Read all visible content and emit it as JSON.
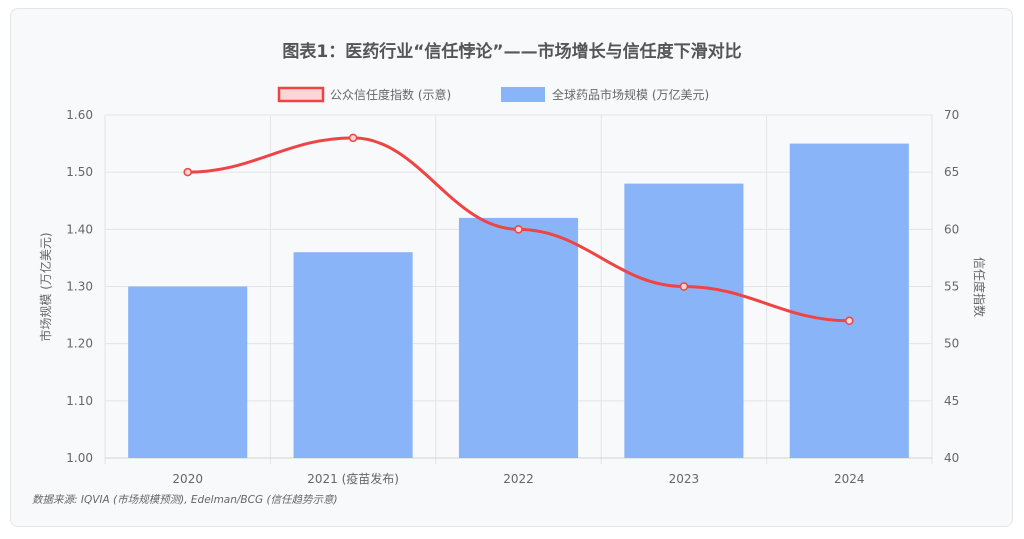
{
  "chart_data": {
    "type": "bar+line",
    "title": "图表1：医药行业“信任悖论”——市场增长与信任度下滑对比",
    "categories": [
      "2020",
      "2021 (疫苗发布)",
      "2022",
      "2023",
      "2024"
    ],
    "series": [
      {
        "name": "公众信任度指数 (示意)",
        "type": "line",
        "axis": "right",
        "color": "#ef4444",
        "values": [
          65,
          68,
          60,
          55,
          52
        ]
      },
      {
        "name": "全球药品市场规模 (万亿美元)",
        "type": "bar",
        "axis": "left",
        "color": "#8ab4f8",
        "values": [
          1.3,
          1.36,
          1.42,
          1.48,
          1.55
        ]
      }
    ],
    "ylabel": "市场规模 (万亿美元)",
    "y2label": "信任度指数",
    "ylim": [
      1.0,
      1.6
    ],
    "yticks": [
      "1.00",
      "1.10",
      "1.20",
      "1.30",
      "1.40",
      "1.50",
      "1.60"
    ],
    "y2lim": [
      40,
      70
    ],
    "y2ticks": [
      "40",
      "45",
      "50",
      "55",
      "60",
      "65",
      "70"
    ],
    "grid": true,
    "legend": "top-center",
    "source": "数据来源: IQVIA (市场规模预测), Edelman/BCG (信任趋势示意)"
  }
}
